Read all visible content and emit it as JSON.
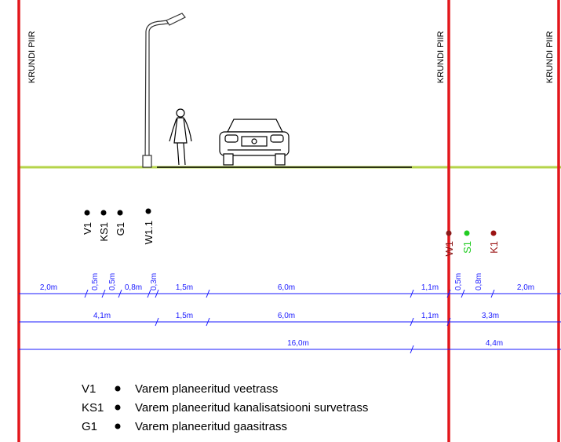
{
  "boundaries": [
    "KRUNDI PIIR",
    "KRUNDI PIIR",
    "KRUNDI PIIR"
  ],
  "utilities": [
    "V1",
    "KS1",
    "G1",
    "W1.1",
    "W1",
    "S1",
    "K1"
  ],
  "dimensions": {
    "row1": [
      "2,0m",
      "0,5m",
      "0,5m",
      "0,8m",
      "0,3m",
      "1,5m",
      "6,0m",
      "1,1m",
      "0,5m",
      "0,8m",
      "2,0m"
    ],
    "row2": [
      "4,1m",
      "1,5m",
      "6,0m",
      "1,1m",
      "3,3m"
    ],
    "row3": [
      "16,0m",
      "4,4m"
    ]
  },
  "legend": [
    {
      "code": "V1",
      "text": "Varem planeeritud veetrass"
    },
    {
      "code": "KS1",
      "text": "Varem planeeritud kanalisatsiooni survetrass"
    },
    {
      "code": "G1",
      "text": "Varem planeeritud gaasitrass"
    }
  ]
}
